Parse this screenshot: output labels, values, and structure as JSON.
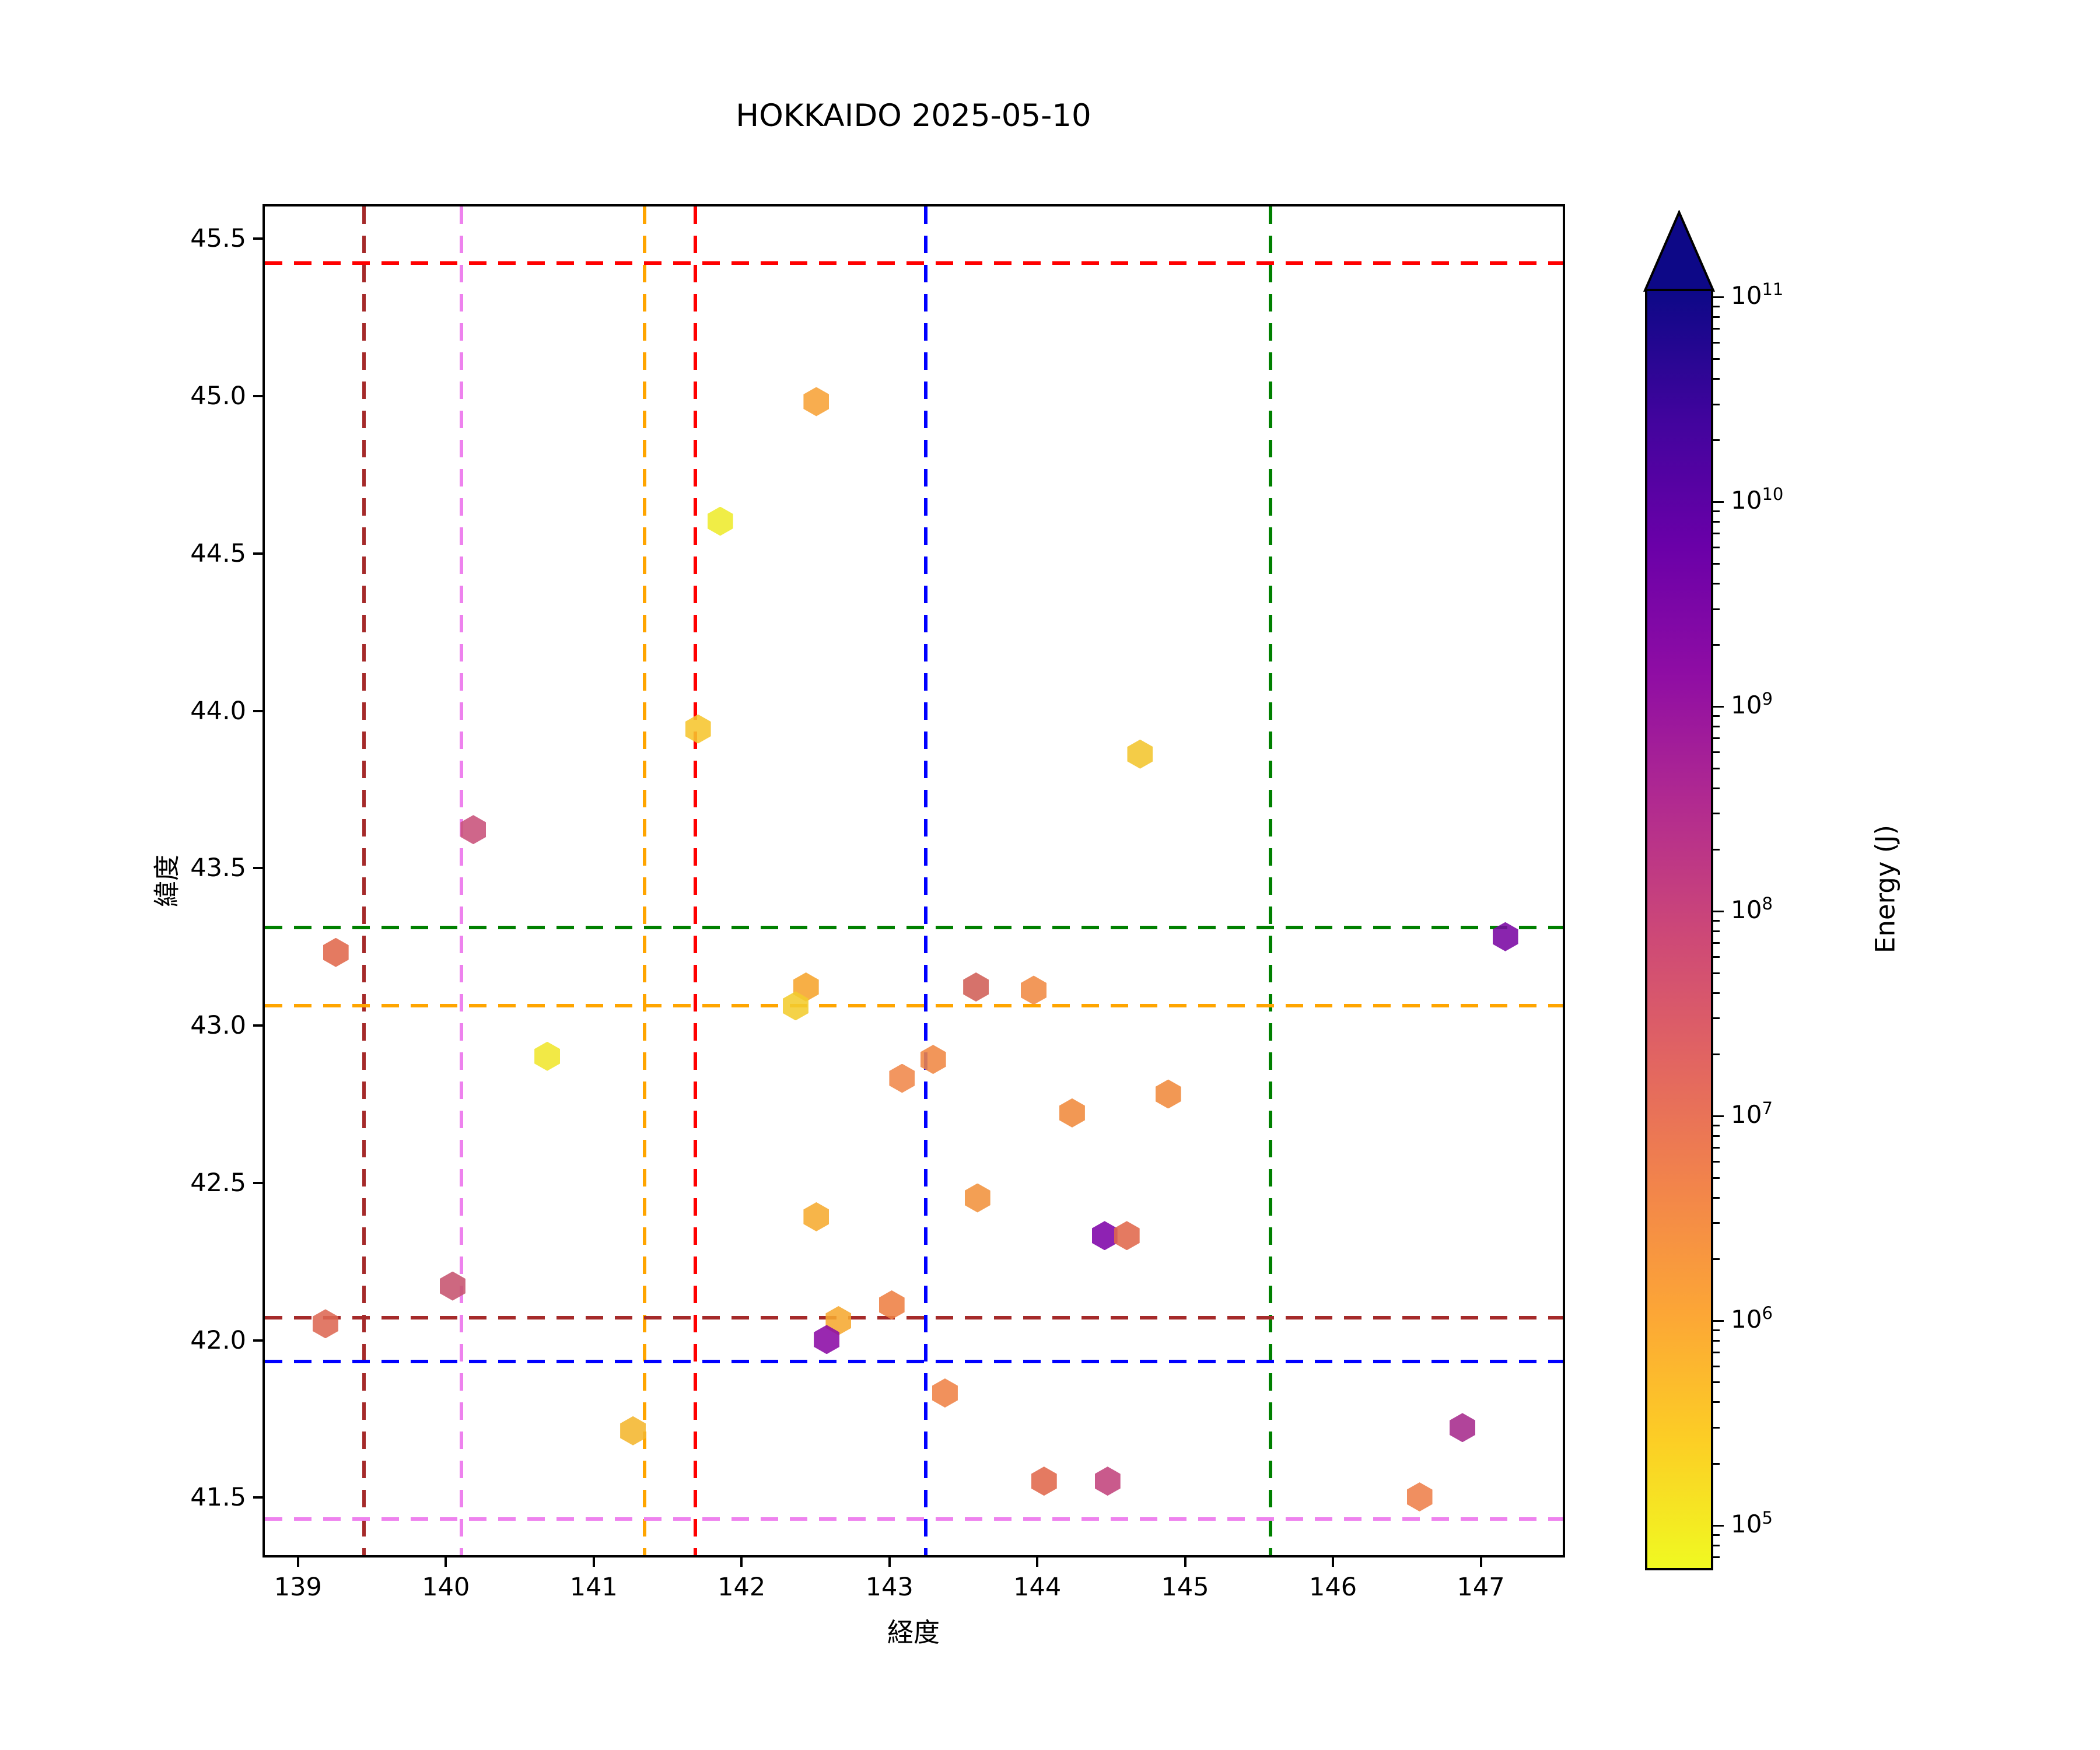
{
  "title": "HOKKAIDO 2025-05-10",
  "axes": {
    "xlabel": "経度",
    "ylabel": "緯度",
    "xlim": [
      138.76,
      147.57
    ],
    "ylim": [
      41.31,
      45.61
    ],
    "xticks": [
      "139",
      "140",
      "141",
      "142",
      "143",
      "144",
      "145",
      "146",
      "147"
    ],
    "yticks": [
      "41.5",
      "42.0",
      "42.5",
      "43.0",
      "43.5",
      "44.0",
      "44.5",
      "45.0",
      "45.5"
    ]
  },
  "colorbar": {
    "label": "Energy (J)",
    "scale": "log",
    "tick_exponents": [
      11,
      10,
      9,
      8,
      7,
      6,
      5
    ],
    "range_log10": [
      4.78,
      11.04
    ],
    "extend_max": true,
    "extend_color": "#0d0887",
    "gradient_top_to_bottom": [
      "#0d0887",
      "#41049d",
      "#6a00a8",
      "#8f0da4",
      "#b12a90",
      "#cc4778",
      "#e16462",
      "#f2844b",
      "#fca636",
      "#fcce25",
      "#f0f921"
    ]
  },
  "chart_data": {
    "type": "scatter",
    "marker": "hexagon",
    "x_field": "lon",
    "y_field": "lat",
    "title": "HOKKAIDO 2025-05-10",
    "xlabel": "経度",
    "ylabel": "緯度",
    "color_meaning": "Energy (J), log scale, plasma colormap reversed (yellow=low, navy=high)",
    "points": [
      {
        "lon": 139.24,
        "lat": 43.24,
        "color": "#e0684b",
        "energy_j": 10000000.0
      },
      {
        "lon": 139.17,
        "lat": 42.06,
        "color": "#dd6853",
        "energy_j": 9000000.0
      },
      {
        "lon": 140.03,
        "lat": 42.18,
        "color": "#c6536e",
        "energy_j": 50000000.0
      },
      {
        "lon": 140.17,
        "lat": 43.63,
        "color": "#c8517a",
        "energy_j": 45000000.0
      },
      {
        "lon": 140.67,
        "lat": 42.91,
        "color": "#f0e62c",
        "energy_j": 150000.0
      },
      {
        "lon": 141.25,
        "lat": 41.72,
        "color": "#f4b62e",
        "energy_j": 600000.0
      },
      {
        "lon": 141.84,
        "lat": 44.61,
        "color": "#eeea2c",
        "energy_j": 100000.0
      },
      {
        "lon": 141.69,
        "lat": 43.95,
        "color": "#f6c52e",
        "energy_j": 450000.0
      },
      {
        "lon": 142.49,
        "lat": 44.99,
        "color": "#f7a237",
        "energy_j": 1100000.0
      },
      {
        "lon": 142.42,
        "lat": 43.13,
        "color": "#f6a42c",
        "energy_j": 1000000.0
      },
      {
        "lon": 142.35,
        "lat": 43.07,
        "color": "#f3cc2f",
        "energy_j": 350000.0
      },
      {
        "lon": 142.49,
        "lat": 42.4,
        "color": "#f6ab30",
        "energy_j": 800000.0
      },
      {
        "lon": 142.64,
        "lat": 42.07,
        "color": "#f6a930",
        "energy_j": 850000.0
      },
      {
        "lon": 142.56,
        "lat": 42.01,
        "color": "#8b0aa5",
        "energy_j": 2000000000.0
      },
      {
        "lon": 143.0,
        "lat": 42.12,
        "color": "#ee8043",
        "energy_j": 3000000.0
      },
      {
        "lon": 143.07,
        "lat": 42.84,
        "color": "#f0884a",
        "energy_j": 2600000.0
      },
      {
        "lon": 143.28,
        "lat": 42.9,
        "color": "#f08843",
        "energy_j": 2600000.0
      },
      {
        "lon": 143.36,
        "lat": 41.84,
        "color": "#ef8245",
        "energy_j": 2900000.0
      },
      {
        "lon": 143.57,
        "lat": 43.13,
        "color": "#d05f57",
        "energy_j": 28000000.0
      },
      {
        "lon": 143.58,
        "lat": 42.46,
        "color": "#f1923c",
        "energy_j": 1800000.0
      },
      {
        "lon": 143.96,
        "lat": 43.12,
        "color": "#f08a43",
        "energy_j": 2500000.0
      },
      {
        "lon": 144.03,
        "lat": 41.56,
        "color": "#e0684b",
        "energy_j": 10000000.0
      },
      {
        "lon": 144.22,
        "lat": 42.73,
        "color": "#f08a3c",
        "energy_j": 2500000.0
      },
      {
        "lon": 144.44,
        "lat": 42.34,
        "color": "#7e03a8",
        "energy_j": 5000000000.0
      },
      {
        "lon": 144.59,
        "lat": 42.34,
        "color": "#e0684b",
        "energy_j": 10000000.0
      },
      {
        "lon": 144.46,
        "lat": 41.56,
        "color": "#c2437c",
        "energy_j": 120000000.0
      },
      {
        "lon": 144.68,
        "lat": 43.87,
        "color": "#f2c52d",
        "energy_j": 450000.0
      },
      {
        "lon": 144.87,
        "lat": 42.79,
        "color": "#f08a3c",
        "energy_j": 2500000.0
      },
      {
        "lon": 146.57,
        "lat": 41.51,
        "color": "#ee7f4a",
        "energy_j": 3000000.0
      },
      {
        "lon": 146.86,
        "lat": 41.73,
        "color": "#a62a8c",
        "energy_j": 500000000.0
      },
      {
        "lon": 147.15,
        "lat": 43.29,
        "color": "#7a07a3",
        "energy_j": 5000000000.0
      }
    ],
    "reference_lines": {
      "vertical": [
        {
          "lon": 139.43,
          "color": "#a52a2a"
        },
        {
          "lon": 140.09,
          "color": "#ee82ee"
        },
        {
          "lon": 141.33,
          "color": "#ffa500"
        },
        {
          "lon": 141.67,
          "color": "#ff0000"
        },
        {
          "lon": 143.23,
          "color": "#0000ff"
        },
        {
          "lon": 145.56,
          "color": "#008000"
        }
      ],
      "horizontal": [
        {
          "lat": 45.43,
          "color": "#ff0000"
        },
        {
          "lat": 43.32,
          "color": "#008000"
        },
        {
          "lat": 43.07,
          "color": "#ffa500"
        },
        {
          "lat": 42.08,
          "color": "#a52a2a"
        },
        {
          "lat": 41.94,
          "color": "#0000ff"
        },
        {
          "lat": 41.44,
          "color": "#ee82ee"
        }
      ]
    },
    "legend_position": "colorbar-right",
    "grid": false
  }
}
